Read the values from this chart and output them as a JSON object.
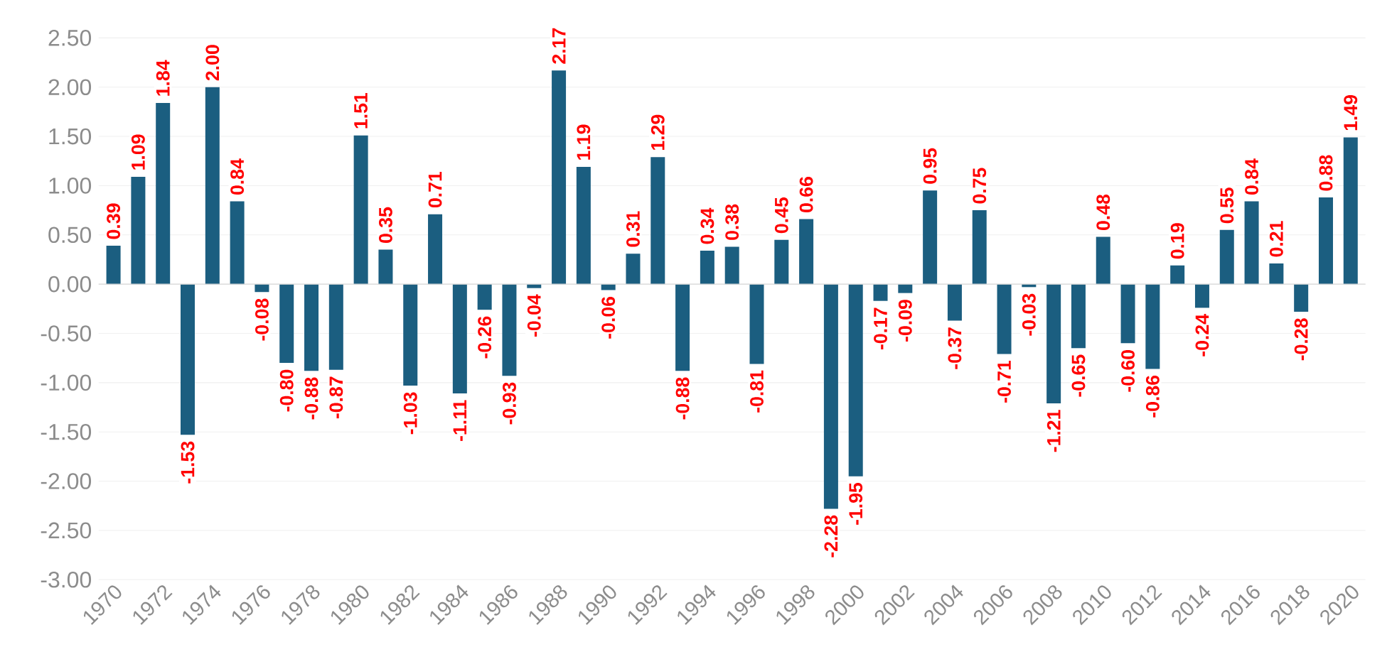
{
  "chart_data": {
    "type": "bar",
    "categories": [
      "1970",
      null,
      "1972",
      null,
      "1974",
      null,
      "1976",
      null,
      "1978",
      null,
      "1980",
      null,
      "1982",
      null,
      "1984",
      null,
      "1986",
      null,
      "1988",
      null,
      "1990",
      null,
      "1992",
      null,
      "1994",
      null,
      "1996",
      null,
      "1998",
      null,
      "2000",
      null,
      "2002",
      null,
      "2004",
      null,
      "2006",
      null,
      "2008",
      null,
      "2010",
      null,
      "2012",
      null,
      "2014",
      null,
      "2016",
      null,
      "2018",
      null,
      "2020"
    ],
    "values": [
      0.39,
      1.09,
      1.84,
      -1.53,
      2.0,
      0.84,
      -0.08,
      -0.8,
      -0.88,
      -0.87,
      1.51,
      0.35,
      -1.03,
      0.71,
      -1.11,
      -0.26,
      -0.93,
      -0.04,
      2.17,
      1.19,
      -0.06,
      0.31,
      1.29,
      -0.88,
      0.34,
      0.38,
      -0.81,
      0.45,
      0.66,
      -2.28,
      -1.95,
      -0.17,
      -0.09,
      0.95,
      -0.37,
      0.75,
      -0.71,
      -0.03,
      -1.21,
      -0.65,
      0.48,
      -0.6,
      -0.86,
      0.19,
      -0.24,
      0.55,
      0.84,
      0.21,
      -0.28,
      0.88,
      1.49
    ],
    "value_labels": [
      "0.39",
      "1.09",
      "1.84",
      "-1.53",
      "2.00",
      "0.84",
      "-0.08",
      "-0.80",
      "-0.88",
      "-0.87",
      "1.51",
      "0.35",
      "-1.03",
      "0.71",
      "-1.11",
      "-0.26",
      "-0.93",
      "-0.04",
      "2.17",
      "1.19",
      "-0.06",
      "0.31",
      "1.29",
      "-0.88",
      "0.34",
      "0.38",
      "-0.81",
      "0.45",
      "0.66",
      "-2.28",
      "-1.95",
      "-0.17",
      "-0.09",
      "0.95",
      "-0.37",
      "0.75",
      "-0.71",
      "-0.03",
      "-1.21",
      "-0.65",
      "0.48",
      "-0.60",
      "-0.86",
      "0.19",
      "-0.24",
      "0.55",
      "0.84",
      "0.21",
      "-0.28",
      "0.88",
      "1.49"
    ],
    "color": "#1b5e80",
    "ylim": [
      -3,
      2.5
    ],
    "yticks": [
      {
        "value": -3,
        "label": "-3.00"
      },
      {
        "value": -2.5,
        "label": "-2.50"
      },
      {
        "value": -2,
        "label": "-2.00"
      },
      {
        "value": -1.5,
        "label": "-1.50"
      },
      {
        "value": -1,
        "label": "-1.00"
      },
      {
        "value": -0.5,
        "label": "-0.50"
      },
      {
        "value": 0,
        "label": "0.00"
      },
      {
        "value": 0.5,
        "label": "0.50"
      },
      {
        "value": 1,
        "label": "1.00"
      },
      {
        "value": 1.5,
        "label": "1.50"
      },
      {
        "value": 2,
        "label": "2.00"
      },
      {
        "value": 2.5,
        "label": "2.50"
      }
    ],
    "grid": "y"
  }
}
